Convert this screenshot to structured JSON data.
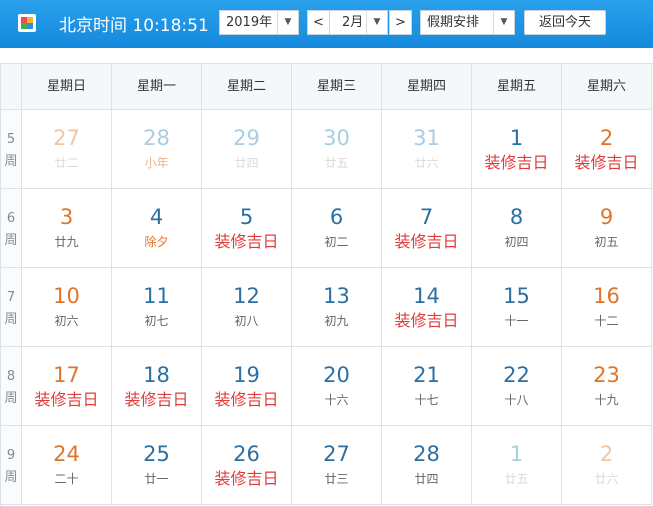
{
  "header": {
    "title": "北京时间 10:18:51",
    "year": "2019年",
    "prev": "<",
    "month": "2月",
    "next": ">",
    "holiday": "假期安排",
    "today": "返回今天"
  },
  "calendar": {
    "weekdays": [
      "星期日",
      "星期一",
      "星期二",
      "星期三",
      "星期四",
      "星期五",
      "星期六"
    ],
    "week_label": "周",
    "weeks": [
      {
        "week": "5",
        "days": [
          {
            "day": "27",
            "sub": "廿二",
            "faded": true
          },
          {
            "day": "28",
            "sub": "小年",
            "faded": true,
            "sub_color": "#e0742a"
          },
          {
            "day": "29",
            "sub": "廿四",
            "faded": true
          },
          {
            "day": "30",
            "sub": "廿五",
            "faded": true
          },
          {
            "day": "31",
            "sub": "廿六",
            "faded": true
          },
          {
            "day": "1",
            "sub": "装修吉日",
            "sub_color": "#e03c3c"
          },
          {
            "day": "2",
            "sub": "装修吉日",
            "sub_color": "#e03c3c"
          }
        ]
      },
      {
        "week": "6",
        "days": [
          {
            "day": "3",
            "sub": "廿九"
          },
          {
            "day": "4",
            "sub": "除夕",
            "sub_color": "#e0742a"
          },
          {
            "day": "5",
            "sub": "装修吉日",
            "sub_color": "#e03c3c"
          },
          {
            "day": "6",
            "sub": "初二"
          },
          {
            "day": "7",
            "sub": "装修吉日",
            "sub_color": "#e03c3c"
          },
          {
            "day": "8",
            "sub": "初四"
          },
          {
            "day": "9",
            "sub": "初五"
          }
        ]
      },
      {
        "week": "7",
        "days": [
          {
            "day": "10",
            "sub": "初六"
          },
          {
            "day": "11",
            "sub": "初七"
          },
          {
            "day": "12",
            "sub": "初八"
          },
          {
            "day": "13",
            "sub": "初九"
          },
          {
            "day": "14",
            "sub": "装修吉日",
            "sub_color": "#e03c3c"
          },
          {
            "day": "15",
            "sub": "十一"
          },
          {
            "day": "16",
            "sub": "十二"
          }
        ]
      },
      {
        "week": "8",
        "days": [
          {
            "day": "17",
            "sub": "装修吉日",
            "sub_color": "#e03c3c"
          },
          {
            "day": "18",
            "sub": "装修吉日",
            "sub_color": "#e03c3c"
          },
          {
            "day": "19",
            "sub": "装修吉日",
            "sub_color": "#e03c3c"
          },
          {
            "day": "20",
            "sub": "十六"
          },
          {
            "day": "21",
            "sub": "十七"
          },
          {
            "day": "22",
            "sub": "十八"
          },
          {
            "day": "23",
            "sub": "十九"
          }
        ]
      },
      {
        "week": "9",
        "days": [
          {
            "day": "24",
            "sub": "二十"
          },
          {
            "day": "25",
            "sub": "廿一"
          },
          {
            "day": "26",
            "sub": "装修吉日",
            "sub_color": "#e03c3c"
          },
          {
            "day": "27",
            "sub": "廿三"
          },
          {
            "day": "28",
            "sub": "廿四"
          },
          {
            "day": "1",
            "sub": "廿五",
            "faded": true
          },
          {
            "day": "2",
            "sub": "廿六",
            "faded": true
          }
        ]
      }
    ]
  }
}
